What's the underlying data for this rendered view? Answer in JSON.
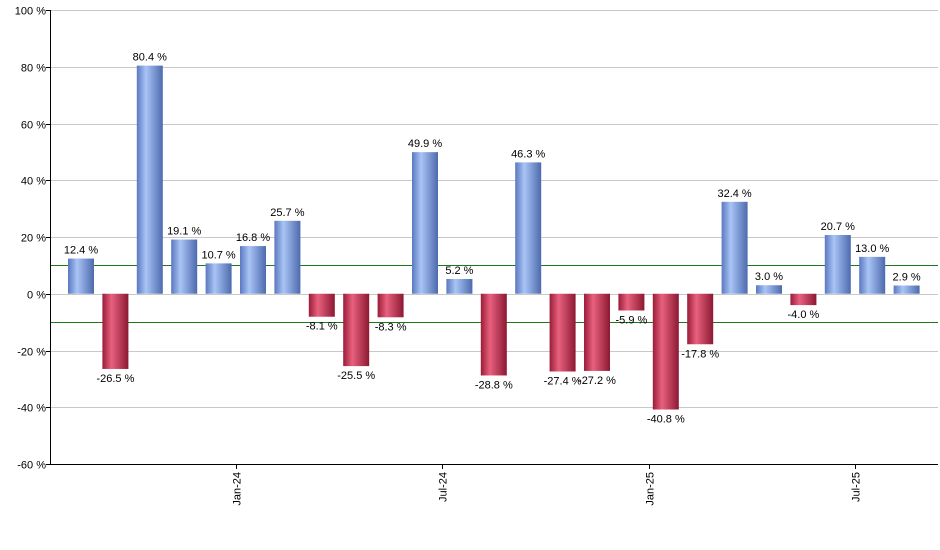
{
  "chart_data": {
    "type": "bar",
    "y_unit_suffix": " %",
    "ylim": [
      -60,
      100
    ],
    "y_ticks": [
      -60,
      -40,
      -20,
      0,
      20,
      40,
      60,
      80,
      100
    ],
    "y_tick_labels": [
      "-60 %",
      "-40 %",
      "-20 %",
      "0 %",
      "20 %",
      "40 %",
      "60 %",
      "80 %",
      "100 %"
    ],
    "grid": true,
    "reference_lines": [
      10,
      -10
    ],
    "x_tick_labels": [
      "Jan-24",
      "Jul-24",
      "Jan-25",
      "Jul-25"
    ],
    "x_tick_positions": [
      4.5,
      10.5,
      16.5,
      22.5
    ],
    "values": [
      12.4,
      -26.5,
      80.4,
      19.1,
      10.7,
      16.8,
      25.7,
      -8.1,
      -25.5,
      -8.3,
      49.9,
      5.2,
      -28.8,
      46.3,
      -27.4,
      -27.2,
      -5.9,
      -40.8,
      -17.8,
      32.4,
      3.0,
      -4.0,
      20.7,
      13.0,
      2.9
    ],
    "data_labels": [
      "12.4 %",
      "-26.5 %",
      "80.4 %",
      "19.1 %",
      "10.7 %",
      "16.8 %",
      "25.7 %",
      "-8.1 %",
      "-25.5 %",
      "-8.3 %",
      "49.9 %",
      "5.2 %",
      "-28.8 %",
      "46.3 %",
      "-27.4 %",
      "-27.2 %",
      "-5.9 %",
      "-40.8 %",
      "-17.8 %",
      "32.4 %",
      "3.0 %",
      "-4.0 %",
      "20.7 %",
      "13.0 %",
      "2.9 %"
    ],
    "colors": {
      "positive": "#7a9ee0",
      "negative": "#c8304e",
      "grid": "#c8c8c8",
      "reference_line": "#1a7a1a",
      "axis": "#000000"
    }
  }
}
